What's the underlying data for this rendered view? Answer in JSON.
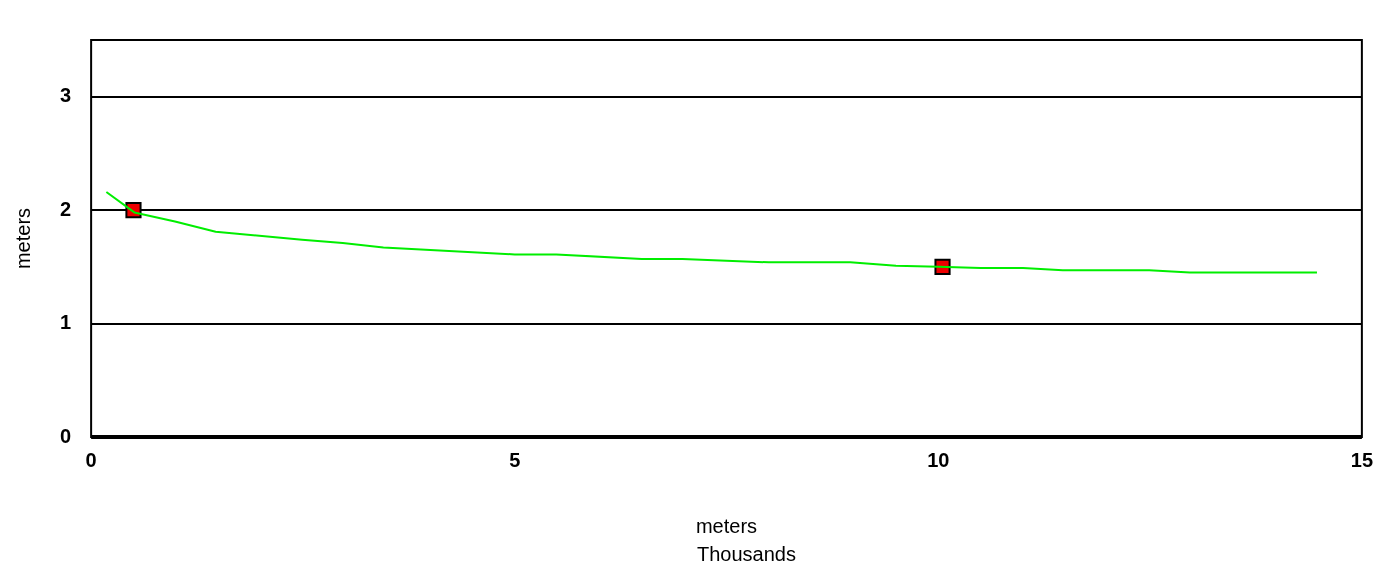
{
  "chart_data": {
    "type": "line",
    "xlabel": "meters",
    "ylabel": "meters",
    "annotations": [
      "Thousands"
    ],
    "xlim": [
      0,
      15
    ],
    "xticks": [
      0,
      5,
      10,
      15
    ],
    "ylim": [
      0,
      3.5
    ],
    "yticks": [
      0,
      1,
      2,
      3
    ],
    "grid": "y",
    "legend": false,
    "series": [
      {
        "color": "#00ee00",
        "marker": "none",
        "x": [
          0.18,
          0.51,
          0.99,
          1.47,
          2.49,
          2.97,
          3.45,
          5.0,
          5.49,
          6.5,
          6.98,
          8.0,
          8.96,
          9.5,
          10.0,
          10.5,
          11.0,
          11.47,
          12.49,
          12.97,
          14.47
        ],
        "values": [
          2.16,
          1.98,
          1.9,
          1.81,
          1.74,
          1.71,
          1.67,
          1.61,
          1.61,
          1.57,
          1.57,
          1.54,
          1.54,
          1.51,
          1.5,
          1.49,
          1.49,
          1.47,
          1.47,
          1.45,
          1.45
        ]
      },
      {
        "type": "scatter",
        "color": "#ee0000",
        "marker": "square",
        "x": [
          0.5,
          10.05
        ],
        "values": [
          2.0,
          1.5
        ]
      }
    ]
  }
}
